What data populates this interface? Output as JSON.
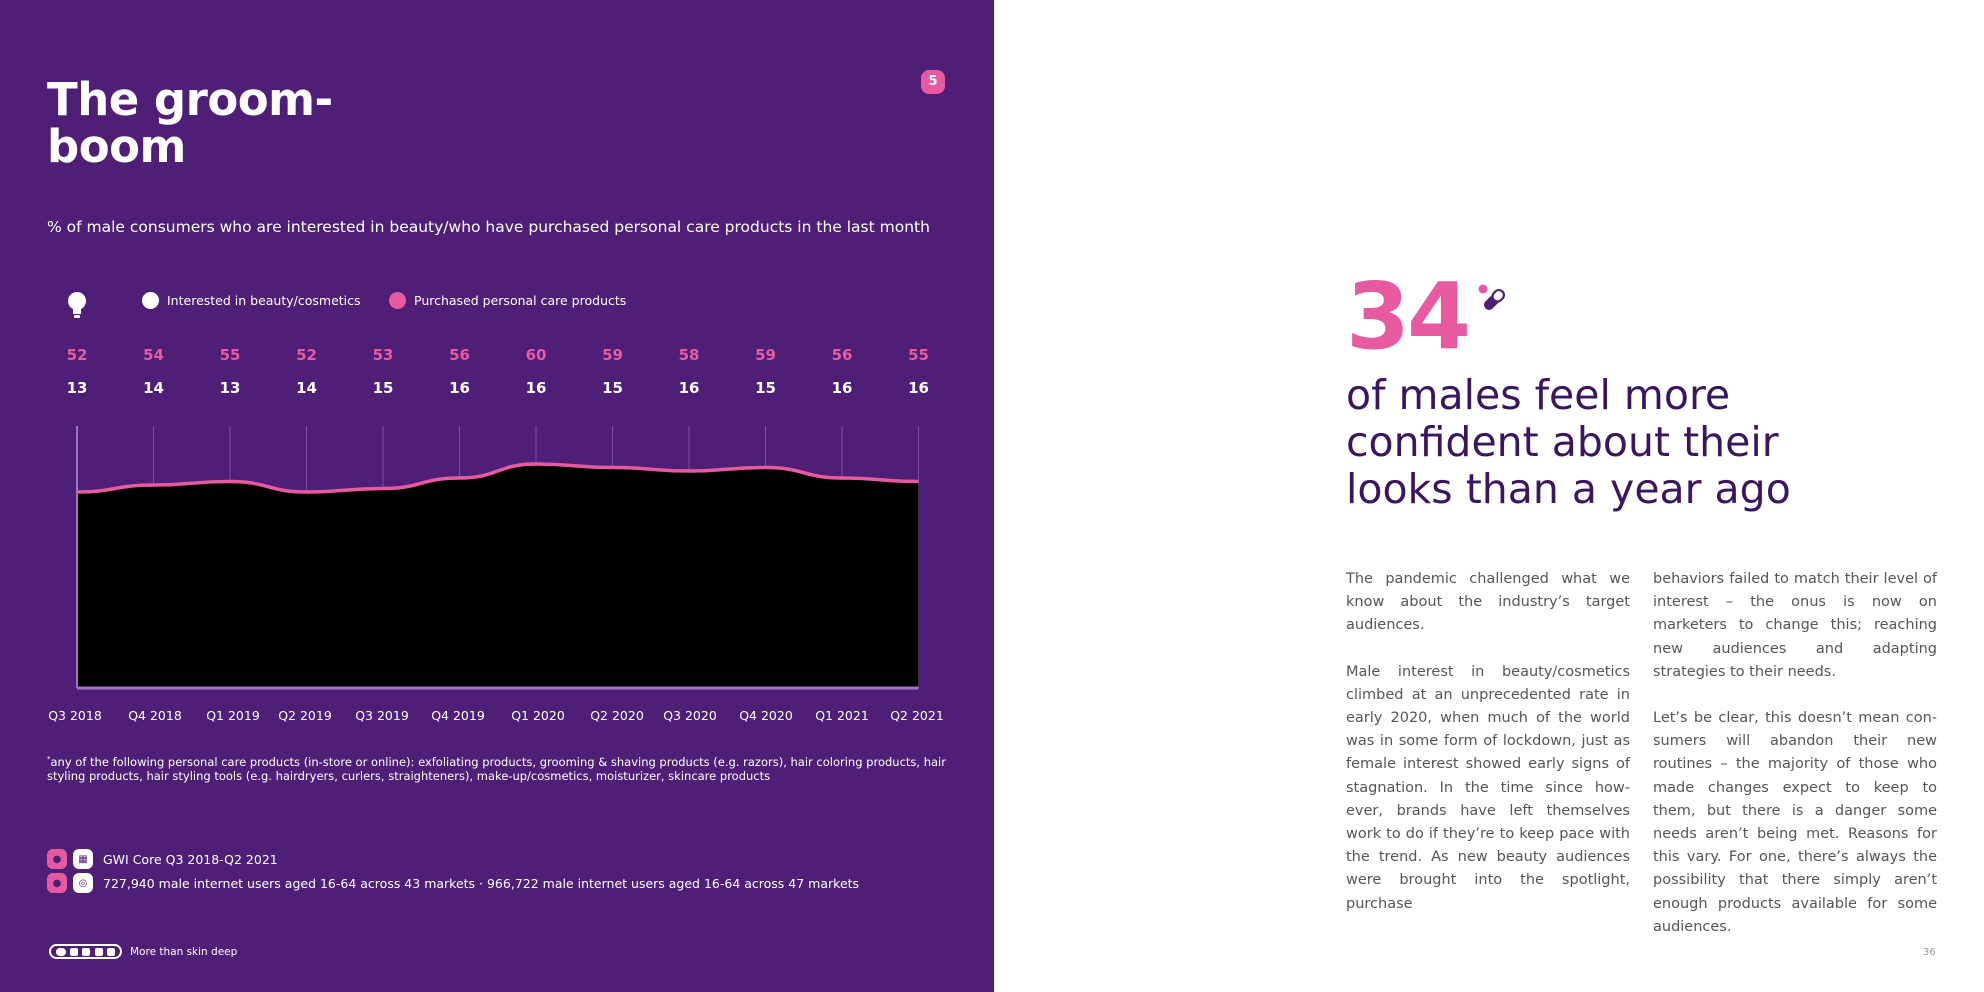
{
  "page": {
    "title": "The groom-boom",
    "badge": "5",
    "subtitle": "% of male consumers who are interested in beauty/who have purchased personal care products in the last month",
    "legend": {
      "icon": "lightbulb-icon",
      "series1": "Interested in beauty/cosmetics",
      "series2": "Purchased personal care products"
    },
    "footnote_mark": "*",
    "footnote": "any of the following personal care products (in-store or online): exfoliating products, grooming & shaving products (e.g. razors), hair coloring products, hair styling products, hair styling tools (e.g. hairdryers, curlers, straighteners), make-up/cosmetics, moisturizer, skincare products",
    "source": {
      "line1": "GWI Core Q3 2018-Q2 2021",
      "line2": "727,940 male internet users aged 16-64 across 43 markets · 966,722 male internet users aged 16-64 across 47 markets"
    },
    "footer": "More than skin deep",
    "page_number": "36"
  },
  "right": {
    "stat": "34",
    "stat_icon": "pill-icon",
    "headline": "of males feel more confident about their looks than a year ago",
    "col1": [
      "The pandemic challenged what we know about the industry’s target audiences.",
      "Male interest in beauty/cosmetics climbed at an unprecedented rate in early 2020, when much of the world was in some form of lockdown, just as female interest showed early signs of stagnation. In the time since how-ever, brands have left themselves work to do if they’re to keep pace with the trend. As new beauty audiences were brought into the spotlight, purchase"
    ],
    "col2": [
      "behaviors failed to match their level of interest – the onus is now on marketers to change this; reaching new audiences and adapting strategies to their needs.",
      "Let’s be clear, this doesn’t mean con-sumers will abandon their new routines – the majority of those who made changes expect to keep to them, but there is a danger some needs aren’t being met. Reasons for this vary. For one, there’s always the possibility that there simply aren’t enough products available for some audiences."
    ]
  },
  "colors": {
    "panel": "#4f1f78",
    "accent": "#e85aa0",
    "area_fill": "#000000",
    "headline": "#3a1560"
  },
  "chart_data": {
    "type": "area",
    "categories": [
      "Q3 2018",
      "Q4 2018",
      "Q1 2019",
      "Q2 2019",
      "Q3 2019",
      "Q4 2019",
      "Q1 2020",
      "Q2 2020",
      "Q3 2020",
      "Q4 2020",
      "Q1 2021",
      "Q2 2021"
    ],
    "series": [
      {
        "name": "Interested in beauty/cosmetics",
        "values": [
          13,
          14,
          13,
          14,
          15,
          16,
          16,
          15,
          16,
          15,
          16,
          16
        ],
        "color": "#ffffff"
      },
      {
        "name": "Purchased personal care products",
        "values": [
          52,
          54,
          55,
          52,
          53,
          56,
          60,
          59,
          58,
          59,
          56,
          55
        ],
        "color": "#e85aa0"
      }
    ],
    "ylim": [
      0,
      100
    ],
    "grid": true,
    "legend": "top-left"
  }
}
